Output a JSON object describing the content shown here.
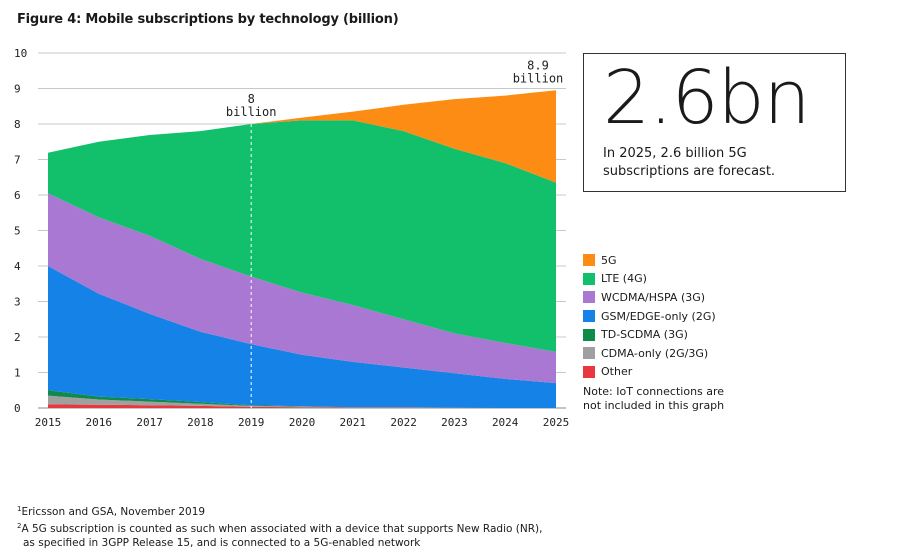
{
  "title": "Figure 4: Mobile subscriptions by technology (billion)",
  "callout": {
    "big": "2.6bn",
    "text": "In 2025, 2.6 billion 5G subscriptions are forecast."
  },
  "note": "Note: IoT connections are not included in this graph",
  "footnotes": [
    {
      "num": "1",
      "text": "Ericsson and GSA, November 2019"
    },
    {
      "num": "2",
      "text": "A 5G subscription is counted as such when associated with a device that supports New Radio (NR),"
    },
    {
      "num": "",
      "text": "as specified in 3GPP Release 15, and is connected to a 5G-enabled network"
    }
  ],
  "chart_data": {
    "type": "area",
    "title": "Figure 4: Mobile subscriptions by technology (billion)",
    "categories": [
      2015,
      2016,
      2017,
      2018,
      2019,
      2020,
      2021,
      2022,
      2023,
      2024,
      2025
    ],
    "ylim": [
      0,
      10
    ],
    "yticks": [
      0,
      1,
      2,
      3,
      4,
      5,
      6,
      7,
      8,
      9,
      10
    ],
    "grid": true,
    "legend_position": "right",
    "series": [
      {
        "name": "Other",
        "color": "#e8383d",
        "values": [
          0.1,
          0.09,
          0.08,
          0.06,
          0.03,
          0.02,
          0.01,
          0.01,
          0.0,
          0.0,
          0.0
        ]
      },
      {
        "name": "CDMA-only (2G/3G)",
        "color": "#a0a0a0",
        "values": [
          0.25,
          0.15,
          0.1,
          0.06,
          0.03,
          0.02,
          0.01,
          0.01,
          0.01,
          0.0,
          0.0
        ]
      },
      {
        "name": "TD-SCDMA (3G)",
        "color": "#0f8a4a",
        "values": [
          0.15,
          0.08,
          0.07,
          0.05,
          0.02,
          0.01,
          0.0,
          0.0,
          0.0,
          0.0,
          0.0
        ]
      },
      {
        "name": "GSM/EDGE-only (2G)",
        "color": "#1482e6",
        "values": [
          3.5,
          2.9,
          2.4,
          1.98,
          1.72,
          1.45,
          1.28,
          1.12,
          0.97,
          0.82,
          0.7
        ]
      },
      {
        "name": "WCDMA/HSPA (3G)",
        "color": "#a878d2",
        "values": [
          2.05,
          2.15,
          2.2,
          2.05,
          1.9,
          1.75,
          1.6,
          1.36,
          1.12,
          1.01,
          0.88
        ]
      },
      {
        "name": "LTE (4G)",
        "color": "#12c06b",
        "values": [
          1.14,
          2.13,
          2.84,
          3.6,
          4.3,
          4.85,
          5.2,
          5.3,
          5.2,
          5.07,
          4.77
        ]
      },
      {
        "name": "5G",
        "color": "#fc8c14",
        "values": [
          0,
          0,
          0,
          0,
          0,
          0.08,
          0.25,
          0.74,
          1.4,
          1.9,
          2.6
        ]
      }
    ],
    "legend_order": [
      "5G",
      "LTE (4G)",
      "WCDMA/HSPA (3G)",
      "GSM/EDGE-only (2G)",
      "TD-SCDMA (3G)",
      "CDMA-only (2G/3G)",
      "Other"
    ],
    "annotations": [
      {
        "year": 2019,
        "text": [
          "8",
          "billion"
        ],
        "dashed_line": true
      },
      {
        "year": 2025,
        "text": [
          "8.9",
          "billion"
        ],
        "dashed_line": false
      }
    ]
  }
}
